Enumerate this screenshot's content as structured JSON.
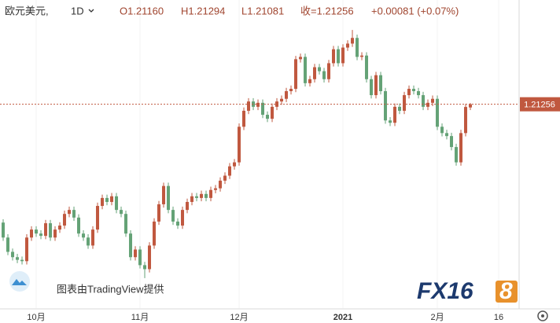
{
  "header": {
    "symbol": "欧元美元,",
    "interval": "1D",
    "open": "O1.21160",
    "high": "H1.21294",
    "low": "L1.21081",
    "close": "收=1.21256",
    "change": "+0.00081 (+0.07%)"
  },
  "chart_data": {
    "type": "candlestick",
    "up_color": "#c0583f",
    "down_color": "#64a276",
    "open": [
      1.177,
      1.1725,
      1.1682,
      1.1666,
      1.1658,
      1.1654,
      1.1725,
      1.1749,
      1.1737,
      1.173,
      1.1768,
      1.1725,
      1.1749,
      1.1761,
      1.1796,
      1.1808,
      1.1785,
      1.1737,
      1.1725,
      1.1701,
      1.1749,
      1.182,
      1.1844,
      1.1832,
      1.1849,
      1.1808,
      1.1796,
      1.1737,
      1.1666,
      1.1689,
      1.1642,
      1.163,
      1.1701,
      1.1773,
      1.1825,
      1.188,
      1.1808,
      1.1773,
      1.1761,
      1.1808,
      1.1832,
      1.1849,
      1.1844,
      1.1856,
      1.1844,
      1.1868,
      1.1873,
      1.1896,
      1.1911,
      1.1939,
      1.1951,
      1.2058,
      1.2106,
      1.2134,
      1.2118,
      1.213,
      1.2094,
      1.2082,
      1.2118,
      1.2134,
      1.2142,
      1.2165,
      1.2172,
      1.2261,
      1.2268,
      1.2189,
      1.2201,
      1.2237,
      1.2225,
      1.2201,
      1.2249,
      1.2291,
      1.2249,
      1.2296,
      1.2308,
      1.2325,
      1.2268,
      1.2272,
      1.2201,
      1.2153,
      1.2213,
      1.2165,
      1.2077,
      1.207,
      1.2118,
      1.2106,
      1.2153,
      1.2172,
      1.2165,
      1.2153,
      1.2118,
      1.213,
      1.2142,
      1.2058,
      1.2039,
      1.203,
      1.1997,
      1.1951,
      1.2039,
      1.2116
    ],
    "high": [
      1.178,
      1.1735,
      1.1692,
      1.1676,
      1.1668,
      1.1735,
      1.1759,
      1.1759,
      1.1747,
      1.1778,
      1.1778,
      1.1759,
      1.1771,
      1.1806,
      1.1818,
      1.1818,
      1.1795,
      1.1747,
      1.1735,
      1.1759,
      1.183,
      1.1854,
      1.1854,
      1.1859,
      1.1859,
      1.1818,
      1.1806,
      1.1747,
      1.1699,
      1.1699,
      1.1652,
      1.1711,
      1.1783,
      1.1835,
      1.189,
      1.189,
      1.1818,
      1.1783,
      1.1818,
      1.1842,
      1.1859,
      1.1859,
      1.1866,
      1.1866,
      1.1878,
      1.1883,
      1.1906,
      1.1921,
      1.1949,
      1.1961,
      1.2068,
      1.2116,
      1.2144,
      1.2144,
      1.214,
      1.214,
      1.2104,
      1.2128,
      1.2144,
      1.2152,
      1.2175,
      1.2182,
      1.2271,
      1.2278,
      1.2278,
      1.2211,
      1.2247,
      1.2247,
      1.2235,
      1.2259,
      1.2301,
      1.2301,
      1.2306,
      1.2318,
      1.2349,
      1.2335,
      1.2282,
      1.2282,
      1.2211,
      1.2223,
      1.2223,
      1.2175,
      1.2087,
      1.2128,
      1.2128,
      1.2163,
      1.2182,
      1.2182,
      1.2175,
      1.2163,
      1.214,
      1.2152,
      1.2152,
      1.2068,
      1.2049,
      1.204,
      1.2007,
      1.2049,
      1.2127,
      1.21294
    ],
    "low": [
      1.1715,
      1.1672,
      1.1656,
      1.1648,
      1.1644,
      1.1644,
      1.1715,
      1.1727,
      1.172,
      1.172,
      1.1715,
      1.1715,
      1.1739,
      1.1751,
      1.1786,
      1.1775,
      1.1727,
      1.1715,
      1.1691,
      1.1691,
      1.1739,
      1.181,
      1.1822,
      1.1822,
      1.1798,
      1.1786,
      1.1727,
      1.1656,
      1.1656,
      1.1632,
      1.1603,
      1.162,
      1.1691,
      1.1763,
      1.1815,
      1.1798,
      1.1763,
      1.1751,
      1.1751,
      1.1798,
      1.1822,
      1.1834,
      1.1834,
      1.1834,
      1.1834,
      1.1858,
      1.1863,
      1.1886,
      1.1901,
      1.1929,
      1.1941,
      1.2048,
      1.2096,
      1.2108,
      1.2108,
      1.2084,
      1.2072,
      1.2072,
      1.2108,
      1.2124,
      1.2132,
      1.2155,
      1.2162,
      1.2251,
      1.2179,
      1.2179,
      1.2191,
      1.2215,
      1.2191,
      1.2191,
      1.2239,
      1.2239,
      1.2239,
      1.2286,
      1.2298,
      1.2258,
      1.2258,
      1.2191,
      1.2143,
      1.2143,
      1.2155,
      1.2067,
      1.206,
      1.206,
      1.2096,
      1.2096,
      1.2143,
      1.2155,
      1.2143,
      1.2108,
      1.2108,
      1.212,
      1.2048,
      1.2029,
      1.202,
      1.1987,
      1.1941,
      1.1941,
      1.2029,
      1.21081
    ],
    "close": [
      1.1725,
      1.1682,
      1.1666,
      1.1658,
      1.1654,
      1.1725,
      1.1749,
      1.1737,
      1.173,
      1.1768,
      1.1725,
      1.1749,
      1.1761,
      1.1796,
      1.1808,
      1.1785,
      1.1737,
      1.1725,
      1.1701,
      1.1749,
      1.182,
      1.1844,
      1.1832,
      1.1849,
      1.1808,
      1.1796,
      1.1737,
      1.1666,
      1.1689,
      1.1642,
      1.163,
      1.1701,
      1.1773,
      1.1825,
      1.188,
      1.1808,
      1.1773,
      1.1761,
      1.1808,
      1.1832,
      1.1849,
      1.1844,
      1.1856,
      1.1844,
      1.1868,
      1.1873,
      1.1896,
      1.1911,
      1.1939,
      1.1951,
      1.2058,
      1.2106,
      1.2134,
      1.2118,
      1.213,
      1.2094,
      1.2082,
      1.2118,
      1.2134,
      1.2142,
      1.2165,
      1.2172,
      1.2261,
      1.2268,
      1.2189,
      1.2201,
      1.2237,
      1.2225,
      1.2201,
      1.2249,
      1.2291,
      1.2249,
      1.2296,
      1.2308,
      1.2325,
      1.2268,
      1.2272,
      1.2201,
      1.2153,
      1.2213,
      1.2165,
      1.2077,
      1.207,
      1.2118,
      1.2106,
      1.2153,
      1.2172,
      1.2165,
      1.2153,
      1.2118,
      1.213,
      1.2142,
      1.2058,
      1.2039,
      1.203,
      1.1997,
      1.1951,
      1.2039,
      1.21175,
      1.21256
    ],
    "xlim": [
      -0.67,
      109.33
    ],
    "ylim": [
      1.1513,
      1.2439
    ],
    "xticks": [
      {
        "value": 7,
        "label": "10月"
      },
      {
        "value": 29,
        "label": "11月"
      },
      {
        "value": 50,
        "label": "12月"
      },
      {
        "value": 72,
        "label": "2021"
      },
      {
        "value": 92,
        "label": "2月"
      },
      {
        "value": 105,
        "label": "16"
      }
    ],
    "price_label": {
      "value": 1.21256,
      "label": "1.21256"
    },
    "watermark": "图表由TradingView提供",
    "logo": "FX16",
    "logo_end": "8"
  }
}
